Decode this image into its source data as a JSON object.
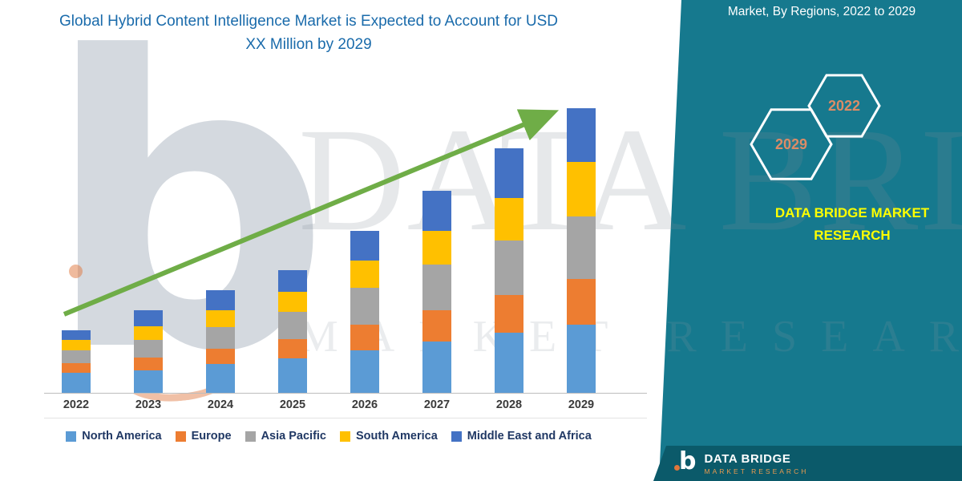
{
  "sidebar": {
    "heading": "Market, By Regions, 2022 to 2029",
    "hexagons": [
      {
        "label": "2029"
      },
      {
        "label": "2022"
      }
    ],
    "brand": "DATA BRIDGE MARKET RESEARCH"
  },
  "footer": {
    "brand": "DATA BRIDGE",
    "tagline": "MARKET RESEARCH"
  },
  "watermark": {
    "letter": "b",
    "line1": "DATA BRIDGE",
    "line2": "MARKET RESEARCH"
  },
  "colors": {
    "accent_teal": "#16798E",
    "footer_teal": "#0B5A6A",
    "title_blue": "#1A6BAB",
    "arrow_green": "#6FAD47",
    "hexagon_year": "#DC8C66",
    "brand_yellow": "#FFFF00"
  },
  "chart_data": {
    "type": "bar",
    "stacked": true,
    "title": "Global Hybrid Content Intelligence Market is Expected to Account for USD XX Million by 2029",
    "categories": [
      "2022",
      "2023",
      "2024",
      "2025",
      "2026",
      "2027",
      "2028",
      "2029"
    ],
    "series": [
      {
        "name": "North America",
        "color": "#5B9BD5",
        "values": [
          7,
          8,
          10,
          12,
          15,
          18,
          21,
          24
        ]
      },
      {
        "name": "Europe",
        "color": "#ED7D31",
        "values": [
          3.5,
          4.5,
          5.5,
          7,
          9,
          11,
          13.5,
          16
        ]
      },
      {
        "name": "Asia Pacific",
        "color": "#A5A5A5",
        "values": [
          4.5,
          6,
          7.5,
          9.5,
          13,
          16,
          19,
          22
        ]
      },
      {
        "name": "South America",
        "color": "#FFC000",
        "values": [
          3.5,
          5,
          6,
          7,
          9.5,
          12,
          15,
          19
        ]
      },
      {
        "name": "Middle East and Africa",
        "color": "#4472C4",
        "values": [
          3.5,
          5.5,
          7,
          7.5,
          10.5,
          14,
          17.5,
          19
        ]
      }
    ],
    "xlabel": "",
    "ylabel": "",
    "ylim": [
      0,
      110
    ],
    "y_axis_visible": false,
    "values_note": "No numeric axis shown in source; values are relative estimates with 2029 total = 100",
    "legend_position": "bottom",
    "annotations": [
      "green upward trend arrow across bar tops"
    ]
  }
}
